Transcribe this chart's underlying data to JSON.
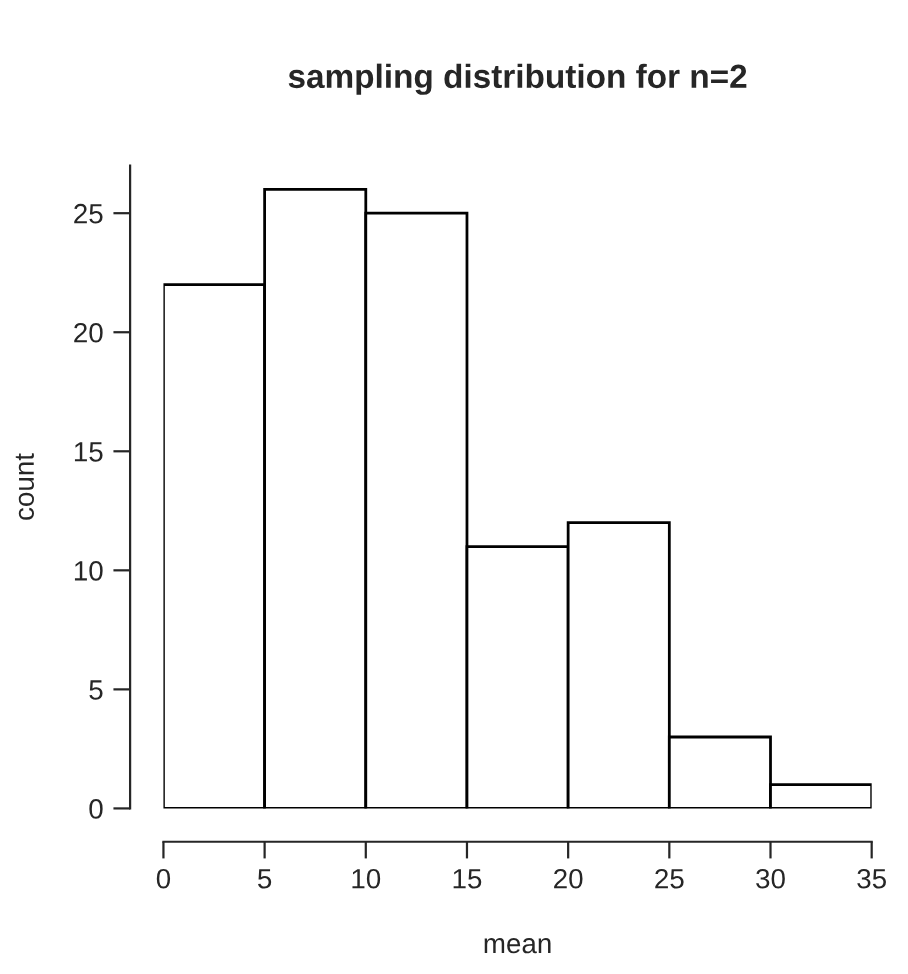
{
  "chart_data": {
    "type": "histogram",
    "title": "sampling distribution for n=2",
    "xlabel": "mean",
    "ylabel": "count",
    "bins": [
      0,
      5,
      10,
      15,
      20,
      25,
      30,
      35
    ],
    "values": [
      22,
      26,
      25,
      11,
      12,
      3,
      1
    ],
    "color": "#ffffff",
    "xlim": [
      0,
      35
    ],
    "ylim": [
      0,
      27
    ],
    "xticks": [
      0,
      5,
      10,
      15,
      20,
      25,
      30,
      35
    ],
    "yticks": [
      0,
      5,
      10,
      15,
      20,
      25
    ],
    "grid": false
  }
}
